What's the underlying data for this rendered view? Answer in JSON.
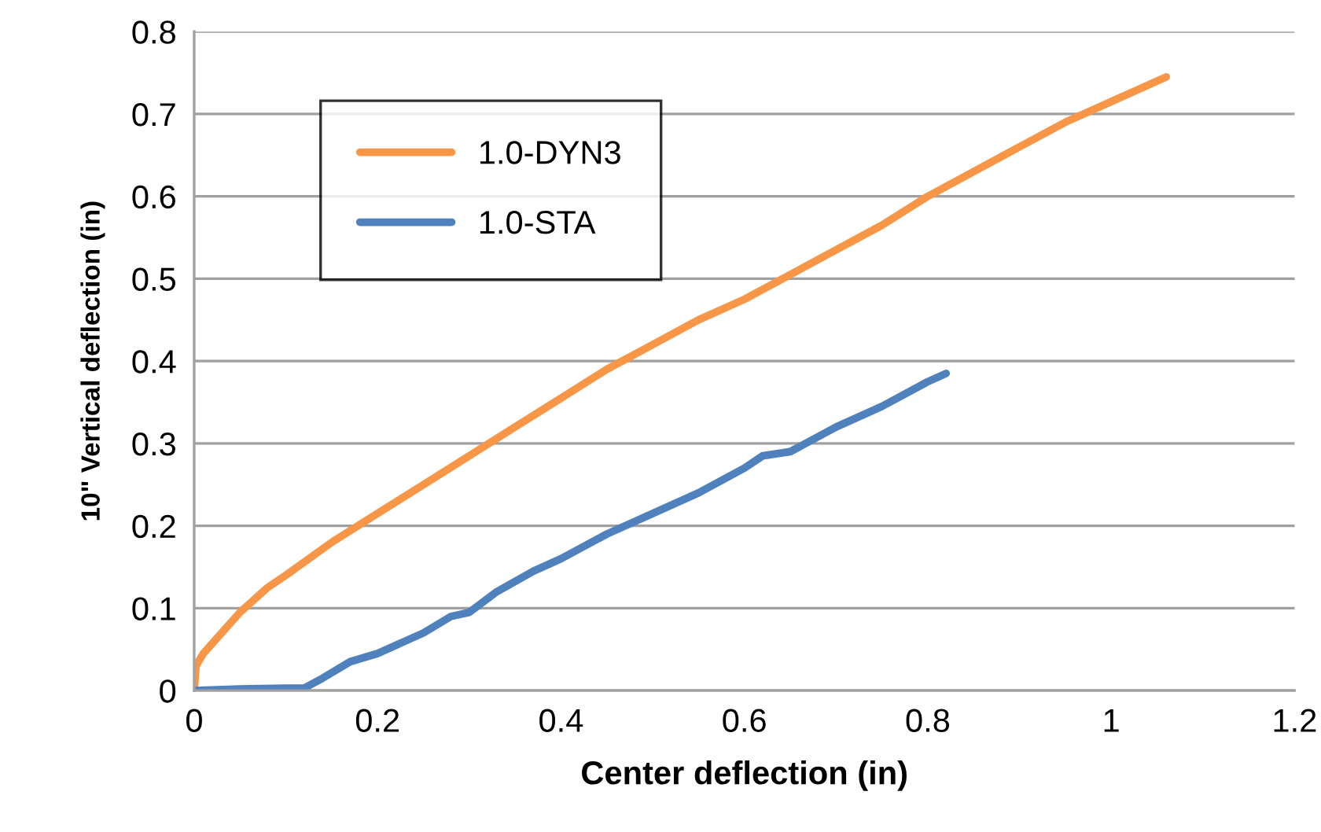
{
  "chart_data": {
    "type": "line",
    "xlabel": "Center deflection (in)",
    "ylabel": "10\" Vertical deflection (in)",
    "xlim": [
      0,
      1.2
    ],
    "xticks": [
      0,
      0.2,
      0.4,
      0.6,
      0.8,
      1,
      1.2
    ],
    "ylim": [
      0,
      0.8
    ],
    "yticks": [
      0,
      0.1,
      0.2,
      0.3,
      0.4,
      0.5,
      0.6,
      0.7,
      0.8
    ],
    "grid": "y",
    "legend": "top left",
    "marker": "none",
    "line_style": "solid",
    "series": [
      {
        "name": "1.0-DYN3",
        "color": "#f79646",
        "x": [
          0,
          0.002,
          0.01,
          0.03,
          0.05,
          0.08,
          0.1,
          0.15,
          0.2,
          0.25,
          0.3,
          0.35,
          0.4,
          0.45,
          0.5,
          0.55,
          0.6,
          0.65,
          0.7,
          0.75,
          0.8,
          0.85,
          0.9,
          0.95,
          1.0,
          1.06
        ],
        "values": [
          0,
          0.03,
          0.045,
          0.07,
          0.095,
          0.125,
          0.14,
          0.18,
          0.215,
          0.25,
          0.285,
          0.32,
          0.355,
          0.39,
          0.42,
          0.45,
          0.475,
          0.505,
          0.535,
          0.565,
          0.6,
          0.63,
          0.66,
          0.69,
          0.715,
          0.745
        ]
      },
      {
        "name": "1.0-STA",
        "color": "#4f81bd",
        "x": [
          0,
          0.05,
          0.1,
          0.12,
          0.14,
          0.17,
          0.2,
          0.25,
          0.28,
          0.3,
          0.33,
          0.37,
          0.4,
          0.45,
          0.5,
          0.55,
          0.6,
          0.62,
          0.65,
          0.7,
          0.75,
          0.8,
          0.82
        ],
        "values": [
          0,
          0.002,
          0.003,
          0.003,
          0.015,
          0.035,
          0.045,
          0.07,
          0.09,
          0.095,
          0.12,
          0.145,
          0.16,
          0.19,
          0.215,
          0.24,
          0.27,
          0.285,
          0.29,
          0.32,
          0.345,
          0.375,
          0.385
        ]
      }
    ]
  }
}
